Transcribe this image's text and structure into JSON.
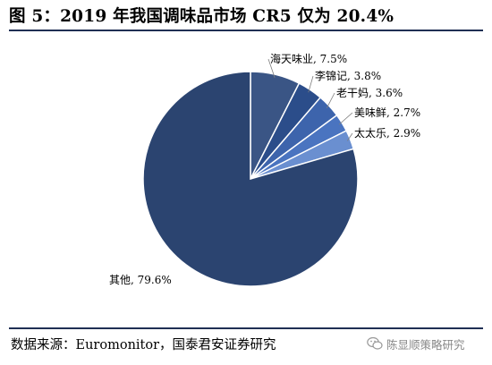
{
  "title": "图 5：2019 年我国调味品市场 CR5 仅为 20.4%",
  "source": "数据来源：Euromonitor，国泰君安证券研究",
  "watermark": "陈显顺策略研究",
  "chart_data": {
    "type": "pie",
    "title": "",
    "slices": [
      {
        "label": "海天味业, 7.5%",
        "name": "海天味业",
        "value": 7.5,
        "color": "#3a5585"
      },
      {
        "label": "李锦记, 3.8%",
        "name": "李锦记",
        "value": 3.8,
        "color": "#2b4d8a"
      },
      {
        "label": "老干妈, 3.6%",
        "name": "老干妈",
        "value": 3.6,
        "color": "#3d64ac"
      },
      {
        "label": "美味鲜, 2.7%",
        "name": "美味鲜",
        "value": 2.7,
        "color": "#4a74c0"
      },
      {
        "label": "太太乐, 2.9%",
        "name": "太太乐",
        "value": 2.9,
        "color": "#6a8fd0"
      },
      {
        "label": "其他, 79.6%",
        "name": "其他",
        "value": 79.6,
        "color": "#2b4470"
      }
    ],
    "start_angle": "12 o'clock",
    "direction": "clockwise"
  },
  "colors": {
    "rule": "#1f2f54",
    "slice_edge": "#ffffff"
  }
}
